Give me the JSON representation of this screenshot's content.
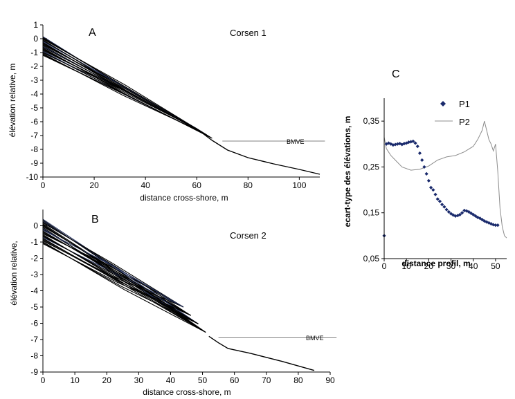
{
  "chart_data": [
    {
      "id": "A",
      "type": "line",
      "panel_label": "A",
      "title": "Corsen 1",
      "xlabel": "distance cross-shore, m",
      "ylabel": "élévation relative, m",
      "xlim": [
        0,
        108
      ],
      "ylim": [
        -10,
        1
      ],
      "xticks": [
        0,
        20,
        40,
        60,
        80,
        100
      ],
      "yticks": [
        1,
        0,
        -1,
        -2,
        -3,
        -4,
        -5,
        -6,
        -7,
        -8,
        -9,
        -10
      ],
      "grid": false,
      "annotation": {
        "text": "BMVE",
        "x1": 70,
        "x2": 110,
        "y": -7.4
      },
      "common_profile": {
        "x": [
          62,
          66,
          72,
          80,
          90,
          100,
          108
        ],
        "y": [
          -6.8,
          -7.35,
          -8.05,
          -8.6,
          -9.05,
          -9.45,
          -9.8
        ]
      },
      "envelope": {
        "start_x": 0,
        "start_y_range": [
          0.15,
          -1.2
        ],
        "end_x_range": [
          60,
          66
        ],
        "end_y_range": [
          -6.5,
          -7.2
        ],
        "n_profiles": 24
      }
    },
    {
      "id": "B",
      "type": "line",
      "panel_label": "B",
      "title": "Corsen 2",
      "xlabel": "distance cross-shore, m",
      "ylabel": "élévation relative,",
      "xlim": [
        0,
        90
      ],
      "ylim": [
        -9,
        1
      ],
      "xticks": [
        0,
        10,
        20,
        30,
        40,
        50,
        60,
        70,
        80,
        90
      ],
      "yticks": [
        0,
        -1,
        -2,
        -3,
        -4,
        -5,
        -6,
        -7,
        -8,
        -9
      ],
      "grid": false,
      "annotation": {
        "text": "BMVE",
        "x1": 55,
        "x2": 92,
        "y": -6.9
      },
      "common_profile": {
        "x": [
          52,
          55,
          58,
          65,
          75,
          85
        ],
        "y": [
          -6.8,
          -7.2,
          -7.55,
          -7.85,
          -8.35,
          -8.9
        ]
      },
      "envelope": {
        "start_x": 0,
        "start_y_range": [
          0.4,
          -1.1
        ],
        "end_x_range": [
          44,
          53
        ],
        "end_y_range": [
          -5.0,
          -7.0
        ],
        "n_profiles": 28
      }
    },
    {
      "id": "C",
      "type": "scatter",
      "panel_label": "C",
      "xlabel": "distance profil, m",
      "ylabel": "ecart-type des élévations, m",
      "xlim": [
        0,
        55
      ],
      "ylim": [
        0.05,
        0.4
      ],
      "xticks": [
        0,
        10,
        20,
        30,
        40,
        50
      ],
      "yticks": [
        0.05,
        0.15,
        0.25,
        0.35
      ],
      "ytick_labels": [
        "0,05",
        "0,15",
        "0,25",
        "0,35"
      ],
      "grid": false,
      "legend_position": "top-right",
      "series": [
        {
          "name": "P1",
          "marker": "diamond",
          "color": "#1a2a6c",
          "x": [
            0,
            1,
            2,
            3,
            4,
            5,
            6,
            7,
            8,
            9,
            10,
            11,
            12,
            13,
            14,
            15,
            16,
            17,
            18,
            19,
            20,
            21,
            22,
            23,
            24,
            25,
            26,
            27,
            28,
            29,
            30,
            31,
            32,
            33,
            34,
            35,
            36,
            37,
            38,
            39,
            40,
            41,
            42,
            43,
            44,
            45,
            46,
            47,
            48,
            49,
            50,
            51
          ],
          "y": [
            0.1,
            0.3,
            0.302,
            0.3,
            0.298,
            0.299,
            0.3,
            0.301,
            0.299,
            0.301,
            0.302,
            0.304,
            0.305,
            0.306,
            0.302,
            0.295,
            0.28,
            0.265,
            0.25,
            0.235,
            0.22,
            0.205,
            0.2,
            0.19,
            0.18,
            0.175,
            0.168,
            0.163,
            0.157,
            0.152,
            0.148,
            0.145,
            0.143,
            0.144,
            0.146,
            0.15,
            0.155,
            0.154,
            0.152,
            0.149,
            0.146,
            0.143,
            0.14,
            0.138,
            0.135,
            0.132,
            0.13,
            0.128,
            0.126,
            0.124,
            0.123,
            0.123
          ]
        },
        {
          "name": "P2",
          "marker": "line",
          "color": "#8c8c8c",
          "x": [
            0,
            1,
            3,
            5,
            8,
            12,
            16,
            20,
            24,
            28,
            32,
            36,
            40,
            42,
            44,
            45,
            46,
            47,
            48,
            49,
            50,
            51,
            52,
            53,
            54,
            55
          ],
          "y": [
            0.315,
            0.29,
            0.275,
            0.265,
            0.25,
            0.243,
            0.245,
            0.252,
            0.265,
            0.272,
            0.275,
            0.283,
            0.295,
            0.31,
            0.33,
            0.35,
            0.33,
            0.31,
            0.3,
            0.285,
            0.3,
            0.24,
            0.16,
            0.12,
            0.1,
            0.095
          ]
        }
      ]
    }
  ]
}
